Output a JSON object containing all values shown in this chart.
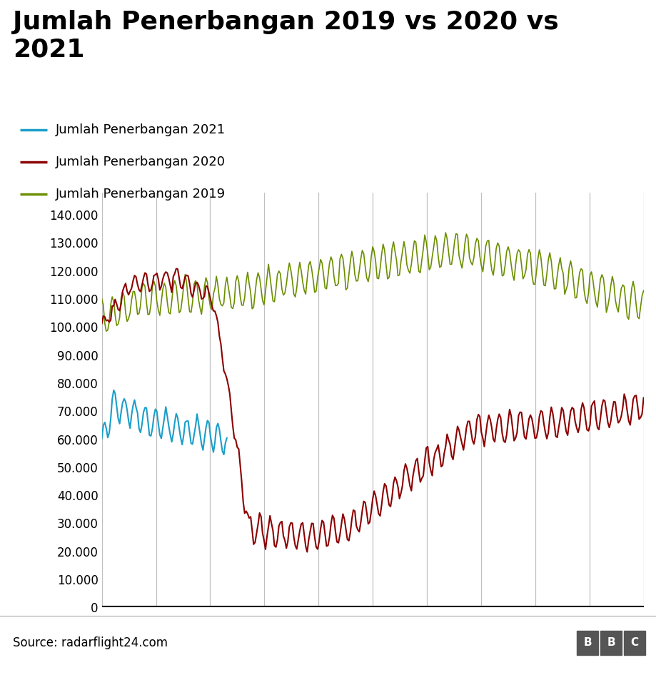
{
  "title": "Jumlah Penerbangan 2019 vs 2020 vs\n2021",
  "title_fontsize": 26,
  "title_fontweight": "bold",
  "legend_labels": [
    "Jumlah Penerbangan 2021",
    "Jumlah Penerbangan 2020",
    "Jumlah Penerbangan 2019"
  ],
  "legend_colors": [
    "#1a9ec9",
    "#8b0000",
    "#6b8e00"
  ],
  "source_text": "Source: radarflight24.com",
  "bbc_text": "BBC",
  "yticks": [
    0,
    10000,
    20000,
    30000,
    40000,
    50000,
    60000,
    70000,
    80000,
    90000,
    100000,
    110000,
    120000,
    130000,
    140000
  ],
  "ytick_labels": [
    "0",
    "10.000",
    "20.000",
    "30.000",
    "40.000",
    "50.000",
    "60.000",
    "70.000",
    "80.000",
    "90.000",
    "100.000",
    "110.000",
    "120.000",
    "130.000",
    "140.000"
  ],
  "ylim": [
    0,
    148000
  ],
  "color_2019": "#6b8e00",
  "color_2020": "#8b0000",
  "color_2021": "#1a9ec9",
  "n_points": 365,
  "background_color": "#ffffff",
  "vgrid_color": "#c0c0c0",
  "num_vgrid": 10
}
